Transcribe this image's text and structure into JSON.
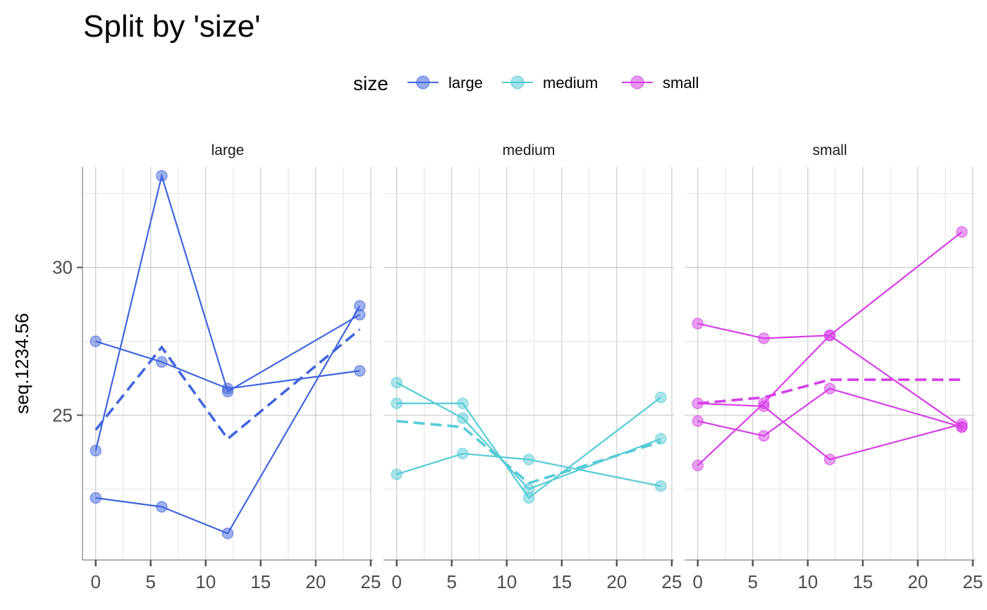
{
  "chart_data": {
    "type": "line",
    "title": "Split by 'size'",
    "xlabel": "",
    "ylabel": "seq.1234.56",
    "legend": {
      "title": "size",
      "position": "top",
      "entries": [
        {
          "name": "large",
          "color": "#4166DD"
        },
        {
          "name": "medium",
          "color": "#55CBD6"
        },
        {
          "name": "small",
          "color": "#D63FE6"
        }
      ]
    },
    "x_ticks": [
      0,
      5,
      10,
      15,
      20,
      25
    ],
    "y_ticks": [
      25,
      30
    ],
    "xlim": [
      -1.2,
      25.2
    ],
    "ylim": [
      20.1,
      33.4
    ],
    "grid": true,
    "panels": [
      {
        "name": "large",
        "color": "#4166DD",
        "subjects": [
          {
            "x": [
              0,
              6,
              12,
              24
            ],
            "y": [
              23.8,
              33.1,
              25.8,
              28.4
            ]
          },
          {
            "x": [
              0,
              6,
              12,
              24
            ],
            "y": [
              27.5,
              26.8,
              25.9,
              26.5
            ]
          },
          {
            "x": [
              0,
              6,
              12,
              24
            ],
            "y": [
              22.2,
              21.9,
              21.0,
              28.7
            ]
          }
        ],
        "mean": {
          "x": [
            0,
            6,
            12,
            24
          ],
          "y": [
            24.5,
            27.3,
            24.2,
            27.9
          ]
        }
      },
      {
        "name": "medium",
        "color": "#55CBD6",
        "subjects": [
          {
            "x": [
              0,
              6,
              12,
              24
            ],
            "y": [
              26.1,
              24.9,
              22.5,
              24.2
            ]
          },
          {
            "x": [
              0,
              6,
              12,
              24
            ],
            "y": [
              25.4,
              25.4,
              22.2,
              25.6
            ]
          },
          {
            "x": [
              0,
              6,
              12,
              24
            ],
            "y": [
              23.0,
              23.7,
              23.5,
              22.6
            ]
          }
        ],
        "mean": {
          "x": [
            0,
            6,
            12,
            24
          ],
          "y": [
            24.8,
            24.6,
            22.7,
            24.1
          ]
        }
      },
      {
        "name": "small",
        "color": "#D63FE6",
        "subjects": [
          {
            "x": [
              0,
              6,
              12,
              24
            ],
            "y": [
              28.1,
              27.6,
              27.7,
              24.6
            ]
          },
          {
            "x": [
              0,
              6,
              12,
              24
            ],
            "y": [
              25.4,
              25.3,
              23.5,
              24.7
            ]
          },
          {
            "x": [
              0,
              6,
              12,
              24
            ],
            "y": [
              24.8,
              24.3,
              25.9,
              24.6
            ]
          },
          {
            "x": [
              0,
              6,
              12,
              24
            ],
            "y": [
              23.3,
              25.4,
              27.7,
              31.2
            ]
          }
        ],
        "mean": {
          "x": [
            0,
            6,
            12,
            24
          ],
          "y": [
            25.4,
            25.6,
            26.2,
            26.2
          ]
        }
      }
    ]
  }
}
